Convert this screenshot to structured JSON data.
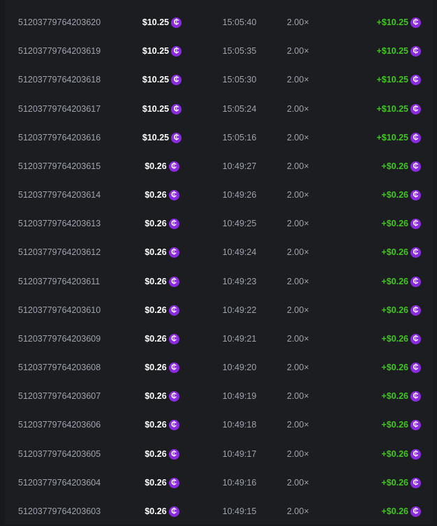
{
  "currency_icon": "crypto-coin-icon",
  "colors": {
    "payout": "#3ec71a",
    "coin": "#8a2be2"
  },
  "rows": [
    {
      "id": "51203779764203620",
      "amount": "$10.25",
      "time": "15:05:40",
      "multiplier": "2.00×",
      "payout": "+$10.25"
    },
    {
      "id": "51203779764203619",
      "amount": "$10.25",
      "time": "15:05:35",
      "multiplier": "2.00×",
      "payout": "+$10.25"
    },
    {
      "id": "51203779764203618",
      "amount": "$10.25",
      "time": "15:05:30",
      "multiplier": "2.00×",
      "payout": "+$10.25"
    },
    {
      "id": "51203779764203617",
      "amount": "$10.25",
      "time": "15:05:24",
      "multiplier": "2.00×",
      "payout": "+$10.25"
    },
    {
      "id": "51203779764203616",
      "amount": "$10.25",
      "time": "15:05:16",
      "multiplier": "2.00×",
      "payout": "+$10.25"
    },
    {
      "id": "51203779764203615",
      "amount": "$0.26",
      "time": "10:49:27",
      "multiplier": "2.00×",
      "payout": "+$0.26"
    },
    {
      "id": "51203779764203614",
      "amount": "$0.26",
      "time": "10:49:26",
      "multiplier": "2.00×",
      "payout": "+$0.26"
    },
    {
      "id": "51203779764203613",
      "amount": "$0.26",
      "time": "10:49:25",
      "multiplier": "2.00×",
      "payout": "+$0.26"
    },
    {
      "id": "51203779764203612",
      "amount": "$0.26",
      "time": "10:49:24",
      "multiplier": "2.00×",
      "payout": "+$0.26"
    },
    {
      "id": "51203779764203611",
      "amount": "$0.26",
      "time": "10:49:23",
      "multiplier": "2.00×",
      "payout": "+$0.26"
    },
    {
      "id": "51203779764203610",
      "amount": "$0.26",
      "time": "10:49:22",
      "multiplier": "2.00×",
      "payout": "+$0.26"
    },
    {
      "id": "51203779764203609",
      "amount": "$0.26",
      "time": "10:49:21",
      "multiplier": "2.00×",
      "payout": "+$0.26"
    },
    {
      "id": "51203779764203608",
      "amount": "$0.26",
      "time": "10:49:20",
      "multiplier": "2.00×",
      "payout": "+$0.26"
    },
    {
      "id": "51203779764203607",
      "amount": "$0.26",
      "time": "10:49:19",
      "multiplier": "2.00×",
      "payout": "+$0.26"
    },
    {
      "id": "51203779764203606",
      "amount": "$0.26",
      "time": "10:49:18",
      "multiplier": "2.00×",
      "payout": "+$0.26"
    },
    {
      "id": "51203779764203605",
      "amount": "$0.26",
      "time": "10:49:17",
      "multiplier": "2.00×",
      "payout": "+$0.26"
    },
    {
      "id": "51203779764203604",
      "amount": "$0.26",
      "time": "10:49:16",
      "multiplier": "2.00×",
      "payout": "+$0.26"
    },
    {
      "id": "51203779764203603",
      "amount": "$0.26",
      "time": "10:49:15",
      "multiplier": "2.00×",
      "payout": "+$0.26"
    }
  ]
}
